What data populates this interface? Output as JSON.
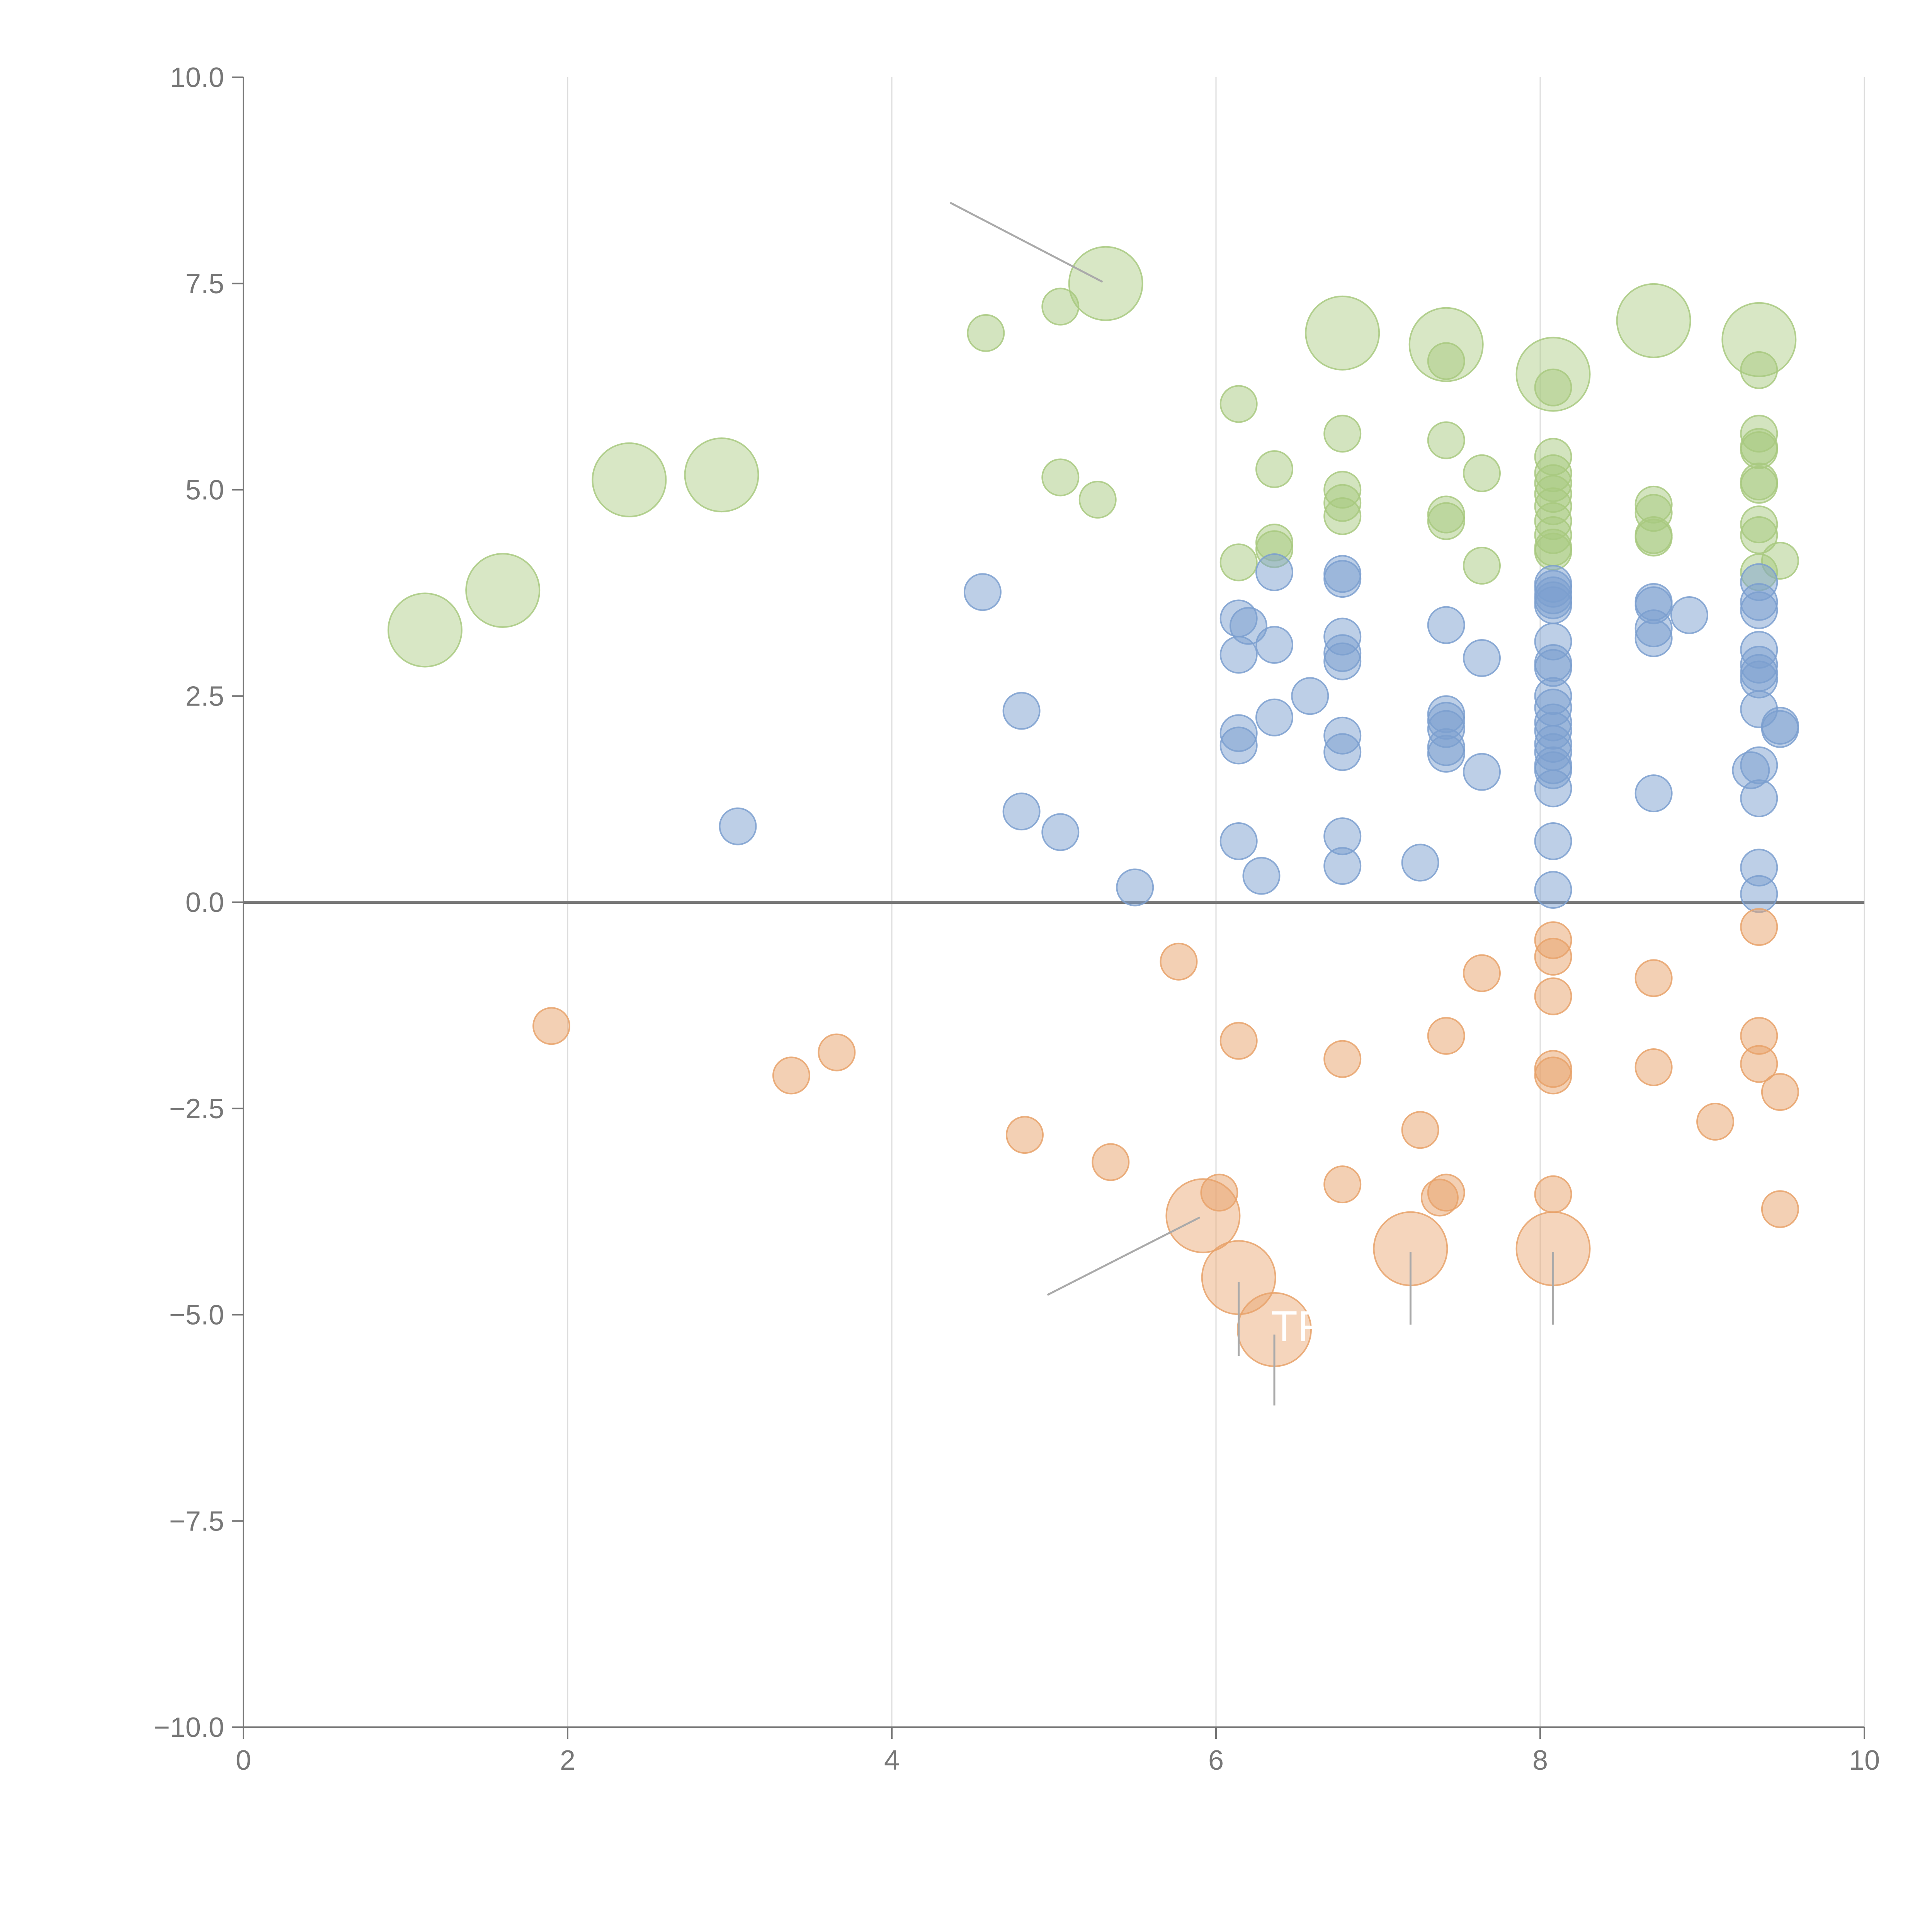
{
  "colors": {
    "green": "#a8c97f",
    "blue": "#7b9fcf",
    "orange": "#e8a26a",
    "axis": "#777777",
    "zeroline": "#777777",
    "grid": "#dddddd",
    "leader": "#aaaaaa"
  },
  "chart_data": {
    "type": "scatter",
    "title": "",
    "xlabel": "",
    "ylabel": "",
    "xlim": [
      0,
      10
    ],
    "ylim": [
      -10,
      10
    ],
    "x_ticks": [
      {
        "value": 0,
        "label": "0"
      },
      {
        "value": 2,
        "label": "2"
      },
      {
        "value": 4,
        "label": "4"
      },
      {
        "value": 6,
        "label": "6"
      },
      {
        "value": 8,
        "label": "8"
      },
      {
        "value": 10,
        "label": "10"
      }
    ],
    "y_ticks": [
      {
        "value": 10,
        "label": "10.0"
      },
      {
        "value": 7.5,
        "label": "7.5"
      },
      {
        "value": 5,
        "label": "5.0"
      },
      {
        "value": 2.5,
        "label": "2.5"
      },
      {
        "value": 0,
        "label": "0.0"
      },
      {
        "value": -2.5,
        "label": "−2.5"
      },
      {
        "value": -5,
        "label": "−5.0"
      },
      {
        "value": -7.5,
        "label": "−7.5"
      },
      {
        "value": -10,
        "label": "−10.0"
      }
    ],
    "grid_x": true,
    "zero_line": true,
    "series": [
      {
        "name": "green",
        "color_key": "green",
        "points": [
          {
            "x": 1.12,
            "y": 3.3,
            "big": true
          },
          {
            "x": 1.6,
            "y": 3.78,
            "big": true
          },
          {
            "x": 2.38,
            "y": 5.12,
            "big": true
          },
          {
            "x": 2.95,
            "y": 5.18,
            "big": true
          },
          {
            "x": 5.32,
            "y": 7.5,
            "big": true
          },
          {
            "x": 6.78,
            "y": 6.9,
            "big": true
          },
          {
            "x": 7.42,
            "y": 6.76,
            "big": true
          },
          {
            "x": 8.08,
            "y": 6.4,
            "big": true
          },
          {
            "x": 8.7,
            "y": 7.05,
            "big": true
          },
          {
            "x": 9.35,
            "y": 6.82,
            "big": true
          },
          {
            "x": 4.58,
            "y": 6.9
          },
          {
            "x": 5.04,
            "y": 7.22
          },
          {
            "x": 5.04,
            "y": 5.15
          },
          {
            "x": 5.27,
            "y": 4.88
          },
          {
            "x": 6.14,
            "y": 6.04
          },
          {
            "x": 6.14,
            "y": 4.12
          },
          {
            "x": 6.36,
            "y": 5.25
          },
          {
            "x": 6.36,
            "y": 4.36
          },
          {
            "x": 6.36,
            "y": 4.28
          },
          {
            "x": 6.78,
            "y": 5.68
          },
          {
            "x": 6.78,
            "y": 5.0
          },
          {
            "x": 6.78,
            "y": 4.84
          },
          {
            "x": 6.78,
            "y": 4.68
          },
          {
            "x": 7.42,
            "y": 6.56
          },
          {
            "x": 7.42,
            "y": 5.6
          },
          {
            "x": 7.42,
            "y": 4.7
          },
          {
            "x": 7.42,
            "y": 4.62
          },
          {
            "x": 7.64,
            "y": 5.2
          },
          {
            "x": 7.64,
            "y": 4.08
          },
          {
            "x": 8.08,
            "y": 6.24
          },
          {
            "x": 8.08,
            "y": 5.4
          },
          {
            "x": 8.08,
            "y": 5.2
          },
          {
            "x": 8.08,
            "y": 5.08
          },
          {
            "x": 8.08,
            "y": 4.95
          },
          {
            "x": 8.08,
            "y": 4.8
          },
          {
            "x": 8.08,
            "y": 4.62
          },
          {
            "x": 8.08,
            "y": 4.45
          },
          {
            "x": 8.08,
            "y": 4.3
          },
          {
            "x": 8.08,
            "y": 4.25
          },
          {
            "x": 8.7,
            "y": 4.82
          },
          {
            "x": 8.7,
            "y": 4.72
          },
          {
            "x": 8.7,
            "y": 4.45
          },
          {
            "x": 8.7,
            "y": 4.42
          },
          {
            "x": 9.35,
            "y": 6.45
          },
          {
            "x": 9.35,
            "y": 5.68
          },
          {
            "x": 9.35,
            "y": 5.52
          },
          {
            "x": 9.35,
            "y": 5.48
          },
          {
            "x": 9.35,
            "y": 5.1
          },
          {
            "x": 9.35,
            "y": 5.06
          },
          {
            "x": 9.35,
            "y": 4.58
          },
          {
            "x": 9.35,
            "y": 4.45
          },
          {
            "x": 9.35,
            "y": 4.0
          },
          {
            "x": 9.48,
            "y": 4.14
          }
        ]
      },
      {
        "name": "blue",
        "color_key": "blue",
        "points": [
          {
            "x": 3.05,
            "y": 0.92
          },
          {
            "x": 4.56,
            "y": 3.76
          },
          {
            "x": 4.8,
            "y": 2.32
          },
          {
            "x": 4.8,
            "y": 1.1
          },
          {
            "x": 5.04,
            "y": 0.85
          },
          {
            "x": 5.5,
            "y": 0.18
          },
          {
            "x": 6.14,
            "y": 3.44
          },
          {
            "x": 6.14,
            "y": 3.0
          },
          {
            "x": 6.14,
            "y": 2.05
          },
          {
            "x": 6.14,
            "y": 1.9
          },
          {
            "x": 6.14,
            "y": 0.74
          },
          {
            "x": 6.2,
            "y": 3.35
          },
          {
            "x": 6.28,
            "y": 0.32
          },
          {
            "x": 6.36,
            "y": 4.0
          },
          {
            "x": 6.36,
            "y": 3.12
          },
          {
            "x": 6.36,
            "y": 2.24
          },
          {
            "x": 6.58,
            "y": 2.5
          },
          {
            "x": 6.78,
            "y": 3.98
          },
          {
            "x": 6.78,
            "y": 3.92
          },
          {
            "x": 6.78,
            "y": 3.22
          },
          {
            "x": 6.78,
            "y": 3.02
          },
          {
            "x": 6.78,
            "y": 2.92
          },
          {
            "x": 6.78,
            "y": 2.02
          },
          {
            "x": 6.78,
            "y": 1.82
          },
          {
            "x": 6.78,
            "y": 0.8
          },
          {
            "x": 6.78,
            "y": 0.44
          },
          {
            "x": 7.26,
            "y": 0.48
          },
          {
            "x": 7.42,
            "y": 3.36
          },
          {
            "x": 7.42,
            "y": 2.28
          },
          {
            "x": 7.42,
            "y": 2.2
          },
          {
            "x": 7.42,
            "y": 2.1
          },
          {
            "x": 7.42,
            "y": 1.88
          },
          {
            "x": 7.42,
            "y": 1.8
          },
          {
            "x": 7.64,
            "y": 2.96
          },
          {
            "x": 7.64,
            "y": 1.58
          },
          {
            "x": 8.08,
            "y": 3.86
          },
          {
            "x": 8.08,
            "y": 3.8
          },
          {
            "x": 8.08,
            "y": 3.72
          },
          {
            "x": 8.08,
            "y": 3.66
          },
          {
            "x": 8.08,
            "y": 3.6
          },
          {
            "x": 8.08,
            "y": 3.16
          },
          {
            "x": 8.08,
            "y": 2.9
          },
          {
            "x": 8.08,
            "y": 2.84
          },
          {
            "x": 8.08,
            "y": 2.5
          },
          {
            "x": 8.08,
            "y": 2.36
          },
          {
            "x": 8.08,
            "y": 2.18
          },
          {
            "x": 8.08,
            "y": 2.08
          },
          {
            "x": 8.08,
            "y": 1.92
          },
          {
            "x": 8.08,
            "y": 1.82
          },
          {
            "x": 8.08,
            "y": 1.66
          },
          {
            "x": 8.08,
            "y": 1.6
          },
          {
            "x": 8.08,
            "y": 1.38
          },
          {
            "x": 8.08,
            "y": 0.74
          },
          {
            "x": 8.08,
            "y": 0.15
          },
          {
            "x": 8.7,
            "y": 3.64
          },
          {
            "x": 8.7,
            "y": 3.6
          },
          {
            "x": 8.7,
            "y": 3.32
          },
          {
            "x": 8.7,
            "y": 3.2
          },
          {
            "x": 8.7,
            "y": 1.32
          },
          {
            "x": 8.92,
            "y": 3.48
          },
          {
            "x": 9.35,
            "y": 3.88
          },
          {
            "x": 9.35,
            "y": 3.64
          },
          {
            "x": 9.35,
            "y": 3.54
          },
          {
            "x": 9.35,
            "y": 3.06
          },
          {
            "x": 9.35,
            "y": 2.88
          },
          {
            "x": 9.35,
            "y": 2.78
          },
          {
            "x": 9.35,
            "y": 2.7
          },
          {
            "x": 9.35,
            "y": 2.34
          },
          {
            "x": 9.35,
            "y": 1.66
          },
          {
            "x": 9.35,
            "y": 1.26
          },
          {
            "x": 9.35,
            "y": 0.42
          },
          {
            "x": 9.35,
            "y": 0.1
          },
          {
            "x": 9.3,
            "y": 1.6
          },
          {
            "x": 9.48,
            "y": 2.14
          },
          {
            "x": 9.48,
            "y": 2.1
          }
        ]
      },
      {
        "name": "orange",
        "color_key": "orange",
        "points": [
          {
            "x": 5.92,
            "y": -3.8,
            "big": true
          },
          {
            "x": 6.14,
            "y": -4.55,
            "big": true
          },
          {
            "x": 6.36,
            "y": -5.18,
            "big": true
          },
          {
            "x": 7.2,
            "y": -4.2,
            "big": true
          },
          {
            "x": 8.08,
            "y": -4.2,
            "big": true
          },
          {
            "x": 1.9,
            "y": -1.5
          },
          {
            "x": 3.38,
            "y": -2.1
          },
          {
            "x": 3.66,
            "y": -1.82
          },
          {
            "x": 4.82,
            "y": -2.82
          },
          {
            "x": 5.35,
            "y": -3.15
          },
          {
            "x": 5.77,
            "y": -0.72
          },
          {
            "x": 6.02,
            "y": -3.52
          },
          {
            "x": 6.14,
            "y": -1.68
          },
          {
            "x": 6.78,
            "y": -1.9
          },
          {
            "x": 6.78,
            "y": -3.42
          },
          {
            "x": 7.26,
            "y": -2.76
          },
          {
            "x": 7.42,
            "y": -1.62
          },
          {
            "x": 7.42,
            "y": -3.52
          },
          {
            "x": 7.38,
            "y": -3.58
          },
          {
            "x": 7.64,
            "y": -0.86
          },
          {
            "x": 8.08,
            "y": -0.46
          },
          {
            "x": 8.08,
            "y": -0.66
          },
          {
            "x": 8.08,
            "y": -1.14
          },
          {
            "x": 8.08,
            "y": -2.02
          },
          {
            "x": 8.08,
            "y": -2.1
          },
          {
            "x": 8.08,
            "y": -3.54
          },
          {
            "x": 8.7,
            "y": -0.92
          },
          {
            "x": 8.7,
            "y": -2.0
          },
          {
            "x": 9.08,
            "y": -2.66
          },
          {
            "x": 9.35,
            "y": -0.3
          },
          {
            "x": 9.35,
            "y": -1.62
          },
          {
            "x": 9.35,
            "y": -1.96
          },
          {
            "x": 9.48,
            "y": -2.3
          },
          {
            "x": 9.48,
            "y": -3.72
          }
        ]
      }
    ],
    "annotations": [
      {
        "text": "TR",
        "x": 6.34,
        "y": -5.32
      }
    ],
    "leader_lines": [
      {
        "x1": 4.36,
        "y1": 8.48,
        "x2": 5.3,
        "y2": 7.52,
        "color_key": "leader"
      },
      {
        "x1": 4.96,
        "y1": -4.76,
        "x2": 5.9,
        "y2": -3.82,
        "color_key": "leader"
      },
      {
        "x1": 6.14,
        "y1": -4.6,
        "x2": 6.14,
        "y2": -5.5,
        "color_key": "leader"
      },
      {
        "x1": 6.36,
        "y1": -5.24,
        "x2": 6.36,
        "y2": -6.1,
        "color_key": "leader"
      },
      {
        "x1": 7.2,
        "y1": -4.24,
        "x2": 7.2,
        "y2": -5.12,
        "color_key": "leader"
      },
      {
        "x1": 8.08,
        "y1": -4.24,
        "x2": 8.08,
        "y2": -5.12,
        "color_key": "leader"
      }
    ]
  }
}
